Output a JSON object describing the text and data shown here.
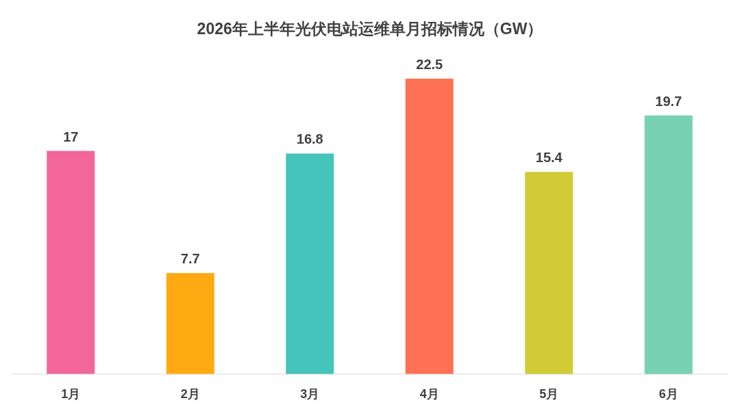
{
  "chart_data": {
    "type": "bar",
    "title": "2026年上半年光伏电站运维单月招标情况（GW）",
    "categories": [
      "1月",
      "2月",
      "3月",
      "4月",
      "5月",
      "6月"
    ],
    "values": [
      17,
      7.7,
      16.8,
      22.5,
      15.4,
      19.7
    ],
    "colors": [
      "#f2669a",
      "#ffaa12",
      "#45c4bc",
      "#ff7153",
      "#d1cc35",
      "#79d1b4"
    ],
    "data_labels": true
  }
}
